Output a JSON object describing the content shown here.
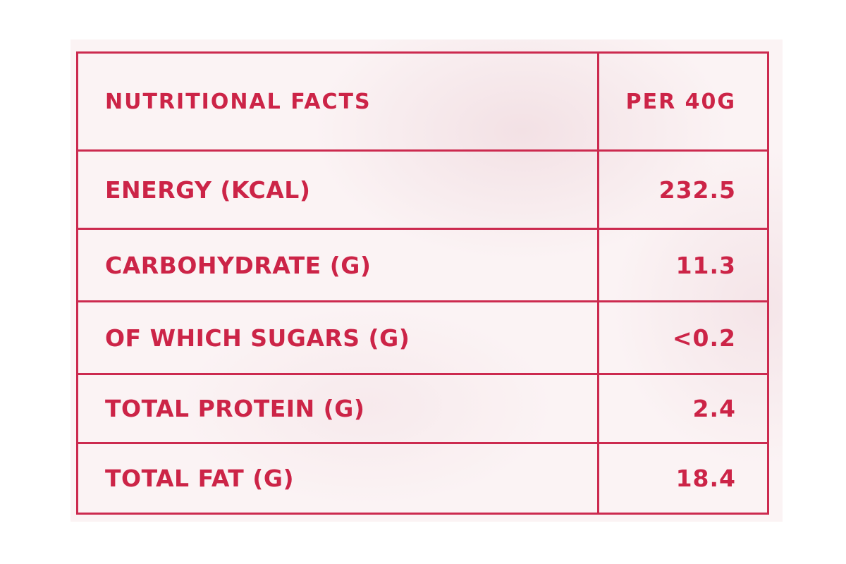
{
  "table": {
    "header": {
      "label": "NUTRITIONAL FACTS",
      "value": "PER 40G"
    },
    "rows": [
      {
        "label": "ENERGY (KCAL)",
        "value": "232.5"
      },
      {
        "label": "CARBOHYDRATE (G)",
        "value": "11.3"
      },
      {
        "label": "OF WHICH SUGARS (G)",
        "value": "<0.2"
      },
      {
        "label": "TOTAL PROTEIN (G)",
        "value": "2.4"
      },
      {
        "label": "TOTAL FAT (G)",
        "value": "18.4"
      }
    ]
  },
  "colors": {
    "accent": "#cc2447",
    "border": "#cc2a4f",
    "background": "#fbf3f4"
  }
}
